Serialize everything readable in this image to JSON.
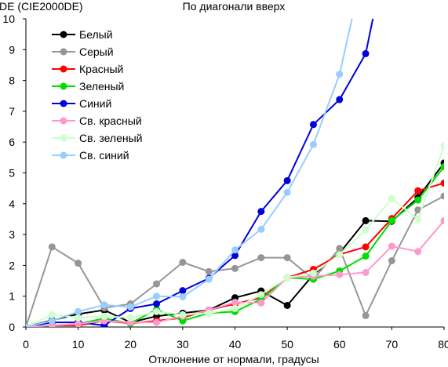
{
  "chart_data": {
    "type": "line",
    "title": "По диагонали вверх",
    "ylabel": "DE (CIE2000DE)",
    "xlabel": "Отклонение от нормали, градусы",
    "x": [
      0,
      5,
      10,
      15,
      20,
      25,
      30,
      35,
      40,
      45,
      50,
      55,
      60,
      65,
      70,
      75,
      80
    ],
    "xlim": [
      0,
      80
    ],
    "ylim": [
      0,
      10
    ],
    "xticks": [
      0,
      10,
      20,
      30,
      40,
      50,
      60,
      70,
      80
    ],
    "yticks": [
      0,
      1,
      2,
      3,
      4,
      5,
      6,
      7,
      8,
      9,
      10
    ],
    "grid": false,
    "legend_position": "top-left",
    "series": [
      {
        "name": "Белый",
        "color": "#000000",
        "values": [
          0,
          0.22,
          0.42,
          0.55,
          0.15,
          0.35,
          0.45,
          0.55,
          0.95,
          1.17,
          0.7,
          1.7,
          2.4,
          3.45,
          3.43,
          4.2,
          5.32
        ]
      },
      {
        "name": "Серый",
        "color": "#969696",
        "values": [
          0,
          2.6,
          2.07,
          0.62,
          0.75,
          1.4,
          2.1,
          1.8,
          1.9,
          2.25,
          2.25,
          1.55,
          2.55,
          0.37,
          2.15,
          3.8,
          4.25
        ]
      },
      {
        "name": "Красный",
        "color": "#ff0000",
        "values": [
          0,
          0.05,
          0.05,
          0.2,
          0.12,
          0.2,
          0.3,
          0.55,
          0.75,
          0.95,
          1.6,
          1.87,
          2.35,
          2.6,
          3.52,
          4.42,
          4.67
        ]
      },
      {
        "name": "Зеленый",
        "color": "#00dd00",
        "values": [
          0,
          0.05,
          0.1,
          0.28,
          0.12,
          0.57,
          0.2,
          0.45,
          0.5,
          0.9,
          1.6,
          1.55,
          1.82,
          2.3,
          3.45,
          4.12,
          5.2
        ]
      },
      {
        "name": "Синий",
        "color": "#0000dd",
        "values": [
          0,
          0.15,
          0.15,
          0.05,
          0.6,
          0.75,
          1.18,
          1.58,
          2.32,
          3.75,
          4.75,
          6.57,
          7.38,
          8.87,
          13,
          null,
          null
        ]
      },
      {
        "name": "Св. красный",
        "color": "#ff99cc",
        "values": [
          0,
          0.05,
          0.1,
          0.2,
          0.15,
          0.15,
          0.35,
          0.55,
          0.8,
          0.78,
          1.6,
          1.65,
          1.7,
          1.77,
          2.62,
          2.45,
          3.45
        ]
      },
      {
        "name": "Св. зеленый",
        "color": "#ccffcc",
        "values": [
          0,
          0.4,
          0.3,
          0.35,
          0.3,
          0.5,
          0.4,
          0.45,
          0.6,
          1.05,
          1.6,
          1.75,
          2.35,
          3.15,
          4.17,
          3.5,
          5.88
        ]
      },
      {
        "name": "Св. синий",
        "color": "#99ccff",
        "values": [
          0,
          0.2,
          0.5,
          0.72,
          0.65,
          1.0,
          0.98,
          1.55,
          2.5,
          3.17,
          4.37,
          5.92,
          8.2,
          12,
          null,
          null,
          null
        ]
      }
    ]
  }
}
